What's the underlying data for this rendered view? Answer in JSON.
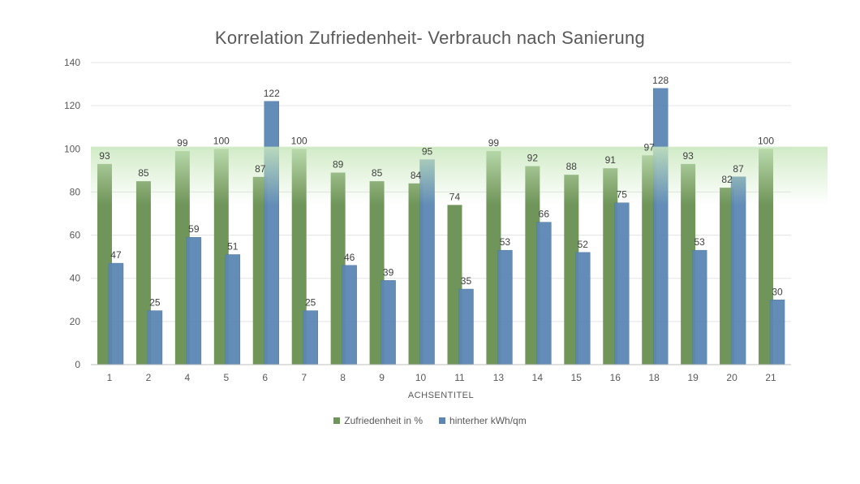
{
  "chart_data": {
    "type": "bar",
    "title": "Korrelation Zufriedenheit- Verbrauch nach Sanierung",
    "xlabel": "ACHSENTITEL",
    "ylabel": "",
    "ylim": [
      0,
      140
    ],
    "yticks": [
      "0",
      "20",
      "40",
      "60",
      "80",
      "100",
      "120",
      "140"
    ],
    "categories": [
      "1",
      "2",
      "4",
      "5",
      "6",
      "7",
      "8",
      "9",
      "10",
      "11",
      "13",
      "14",
      "15",
      "16",
      "18",
      "19",
      "20",
      "21"
    ],
    "series": [
      {
        "name": "Zufriedenheit in %",
        "color": "#70955a",
        "values": [
          93,
          85,
          99,
          100,
          87,
          100,
          89,
          85,
          84,
          74,
          99,
          92,
          88,
          91,
          97,
          93,
          82,
          100
        ]
      },
      {
        "name": "hinterher kWh/qm",
        "color": "#5b87b3",
        "values": [
          47,
          25,
          59,
          51,
          122,
          25,
          46,
          39,
          95,
          35,
          53,
          66,
          52,
          75,
          128,
          53,
          87,
          30
        ]
      }
    ],
    "highlight_band": {
      "from": 74,
      "to": 101,
      "color": "#c9e8bd"
    },
    "grid": true,
    "legend_position": "bottom"
  }
}
